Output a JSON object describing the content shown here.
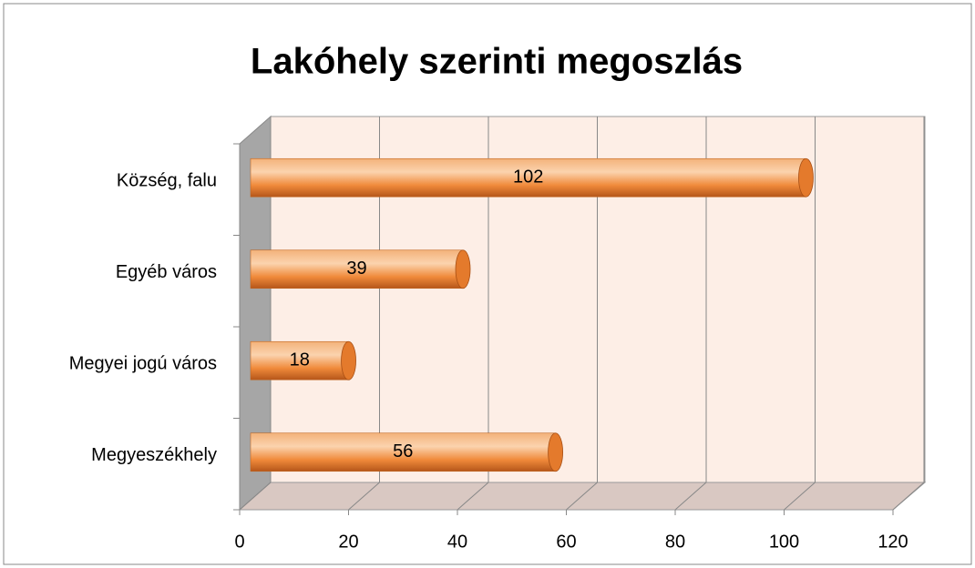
{
  "chart_data": {
    "type": "bar",
    "orientation": "horizontal",
    "title": "Lakóhely szerinti megoszlás",
    "categories": [
      "Község, falu",
      "Egyéb város",
      "Megyei jogú város",
      "Megyeszékhely"
    ],
    "values": [
      102,
      39,
      18,
      56
    ],
    "color": "#f79646",
    "xlim": [
      0,
      120
    ],
    "xticks": [
      0,
      20,
      40,
      60,
      80,
      100,
      120
    ],
    "grid": true
  }
}
